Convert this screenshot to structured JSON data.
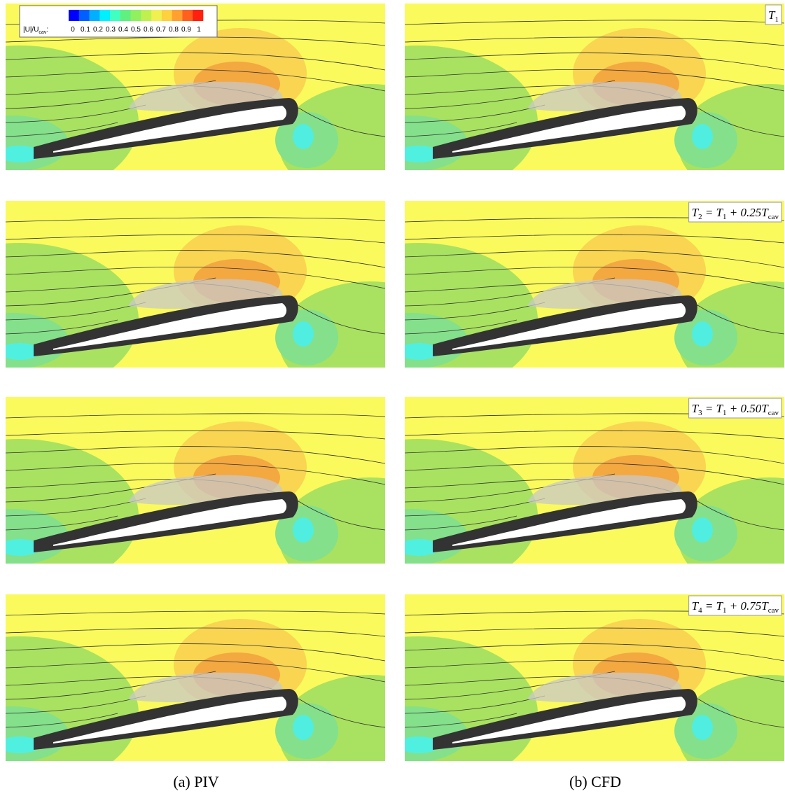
{
  "colorbar": {
    "label": [
      "|U|/U",
      "cav",
      ":"
    ],
    "ticks": [
      0,
      0.1,
      0.2,
      0.3,
      0.4,
      0.5,
      0.6,
      0.7,
      0.8,
      0.9,
      1
    ],
    "colors": [
      "#0000ff",
      "#0060ff",
      "#00b0ff",
      "#00f0ff",
      "#40ffc0",
      "#60f080",
      "#90f060",
      "#c0f050",
      "#f0f050",
      "#ffd040",
      "#ffa030",
      "#ff6020",
      "#ff2010"
    ]
  },
  "panel_labels": [
    [
      "T",
      "1"
    ],
    [
      "T",
      "2",
      " = T",
      "1",
      " + 0.25T",
      "cav"
    ],
    [
      "T",
      "3",
      " = T",
      "1",
      " + 0.50T",
      "cav"
    ],
    [
      "T",
      "4",
      " = T",
      "1",
      " + 0.75T",
      "cav"
    ]
  ],
  "captions": [
    "(a) PIV",
    "(b) CFD"
  ]
}
